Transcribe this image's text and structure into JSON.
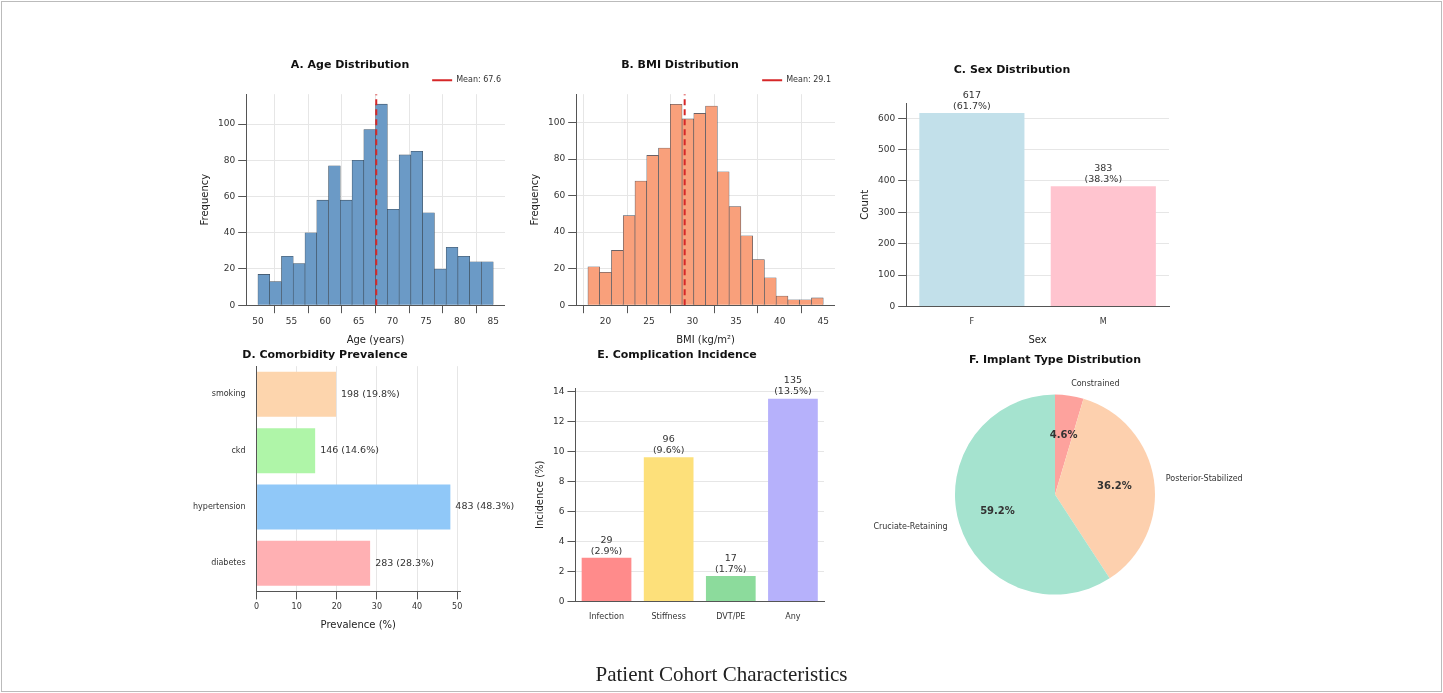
{
  "chart_data": [
    {
      "type": "histogram",
      "title": "A. Age Distribution",
      "xlabel": "Age (years)",
      "ylabel": "Frequency",
      "bins": [
        50,
        51.75,
        53.5,
        55.25,
        57,
        58.75,
        60.5,
        62.25,
        64,
        65.75,
        67.5,
        69.25,
        71,
        72.75,
        74.5,
        76.25,
        78,
        79.75,
        81.5,
        83.25,
        85
      ],
      "values": [
        17,
        13,
        27,
        23,
        40,
        58,
        77,
        58,
        80,
        97,
        111,
        53,
        83,
        85,
        51,
        20,
        32,
        27,
        24,
        24
      ],
      "color": "#6b9ac6",
      "xlim": [
        48.25,
        86.75
      ],
      "xticks": [
        50,
        55,
        60,
        65,
        70,
        75,
        80,
        85
      ],
      "ylim": [
        0,
        116.5
      ],
      "yticks": [
        0,
        20,
        40,
        60,
        80,
        100
      ],
      "grid": true,
      "legend": "top right",
      "ref_lines": [
        {
          "axis": "x",
          "value": 67.6,
          "label": "Mean: 67.6",
          "color": "#d62728",
          "line_style": "dashed"
        }
      ],
      "annotations": [
        "Patient Cohort Characteristics"
      ]
    },
    {
      "type": "histogram",
      "title": "B. BMI Distribution",
      "xlabel": "BMI (kg/m²)",
      "ylabel": "Frequency",
      "bins": [
        18,
        19.35,
        20.7,
        22.05,
        23.4,
        24.75,
        26.1,
        27.45,
        28.8,
        30.15,
        31.5,
        32.85,
        34.2,
        35.55,
        36.9,
        38.25,
        39.6,
        40.95,
        42.3,
        43.65,
        45
      ],
      "values": [
        21,
        18,
        30,
        49,
        68,
        82,
        86,
        110,
        102,
        105,
        109,
        73,
        54,
        38,
        25,
        15,
        5,
        3,
        3,
        4
      ],
      "color": "#f9a07b",
      "xlim": [
        16.65,
        46.35
      ],
      "xticks": [
        20,
        25,
        30,
        35,
        40,
        45
      ],
      "ylim": [
        0,
        115.5
      ],
      "yticks": [
        0,
        20,
        40,
        60,
        80,
        100
      ],
      "grid": true,
      "legend": "top right",
      "ref_lines": [
        {
          "axis": "x",
          "value": 29.1,
          "label": "Mean: 29.1",
          "color": "#d62728",
          "line_style": "dashed"
        }
      ]
    },
    {
      "type": "bar",
      "title": "C. Sex Distribution",
      "xlabel": "Sex",
      "ylabel": "Count",
      "categories": [
        "F",
        "M"
      ],
      "values": [
        617,
        383
      ],
      "colors": [
        "#c2e0ea",
        "#ffc4cf"
      ],
      "value_labels": [
        "617\n(61.7%)",
        "383\n(38.3%)"
      ],
      "ylim": [
        0,
        648
      ],
      "yticks": [
        0,
        100,
        200,
        300,
        400,
        500,
        600
      ],
      "grid": "y"
    },
    {
      "type": "bar",
      "orientation": "horizontal",
      "title": "D. Comorbidity Prevalence",
      "xlabel": "Prevalence (%)",
      "categories": [
        "smoking",
        "ckd",
        "hypertension",
        "diabetes"
      ],
      "values": [
        19.8,
        14.6,
        48.3,
        28.3
      ],
      "colors": [
        "#fdd5ad",
        "#aff5a8",
        "#90c8f8",
        "#ffb0b3"
      ],
      "value_labels": [
        "198 (19.8%)",
        "146 (14.6%)",
        "483 (48.3%)",
        "283 (28.3%)"
      ],
      "xlim": [
        0,
        50.7
      ],
      "xticks": [
        0,
        10,
        20,
        30,
        40,
        50
      ],
      "grid": "x"
    },
    {
      "type": "bar",
      "title": "E. Complication Incidence",
      "ylabel": "Incidence (%)",
      "categories": [
        "Infection",
        "Stiffness",
        "DVT/PE",
        "Any"
      ],
      "values": [
        2.9,
        9.6,
        1.7,
        13.5
      ],
      "colors": [
        "#ff8b8b",
        "#fde07a",
        "#8cdb9c",
        "#b6b1fb"
      ],
      "value_labels": [
        "29\n(2.9%)",
        "96\n(9.6%)",
        "17\n(1.7%)",
        "135\n(13.5%)"
      ],
      "ylim": [
        0,
        14.2
      ],
      "yticks": [
        0,
        2,
        4,
        6,
        8,
        10,
        12,
        14
      ],
      "grid": "y"
    },
    {
      "type": "pie",
      "title": "F. Implant Type Distribution",
      "categories": [
        "Constrained",
        "Posterior-Stabilized",
        "Cruciate-Retaining"
      ],
      "values": [
        4.6,
        36.2,
        59.2
      ],
      "colors": [
        "#fda29d",
        "#fdd0ae",
        "#a5e3cf"
      ],
      "value_labels": [
        "4.6%",
        "36.2%",
        "59.2%"
      ]
    }
  ]
}
